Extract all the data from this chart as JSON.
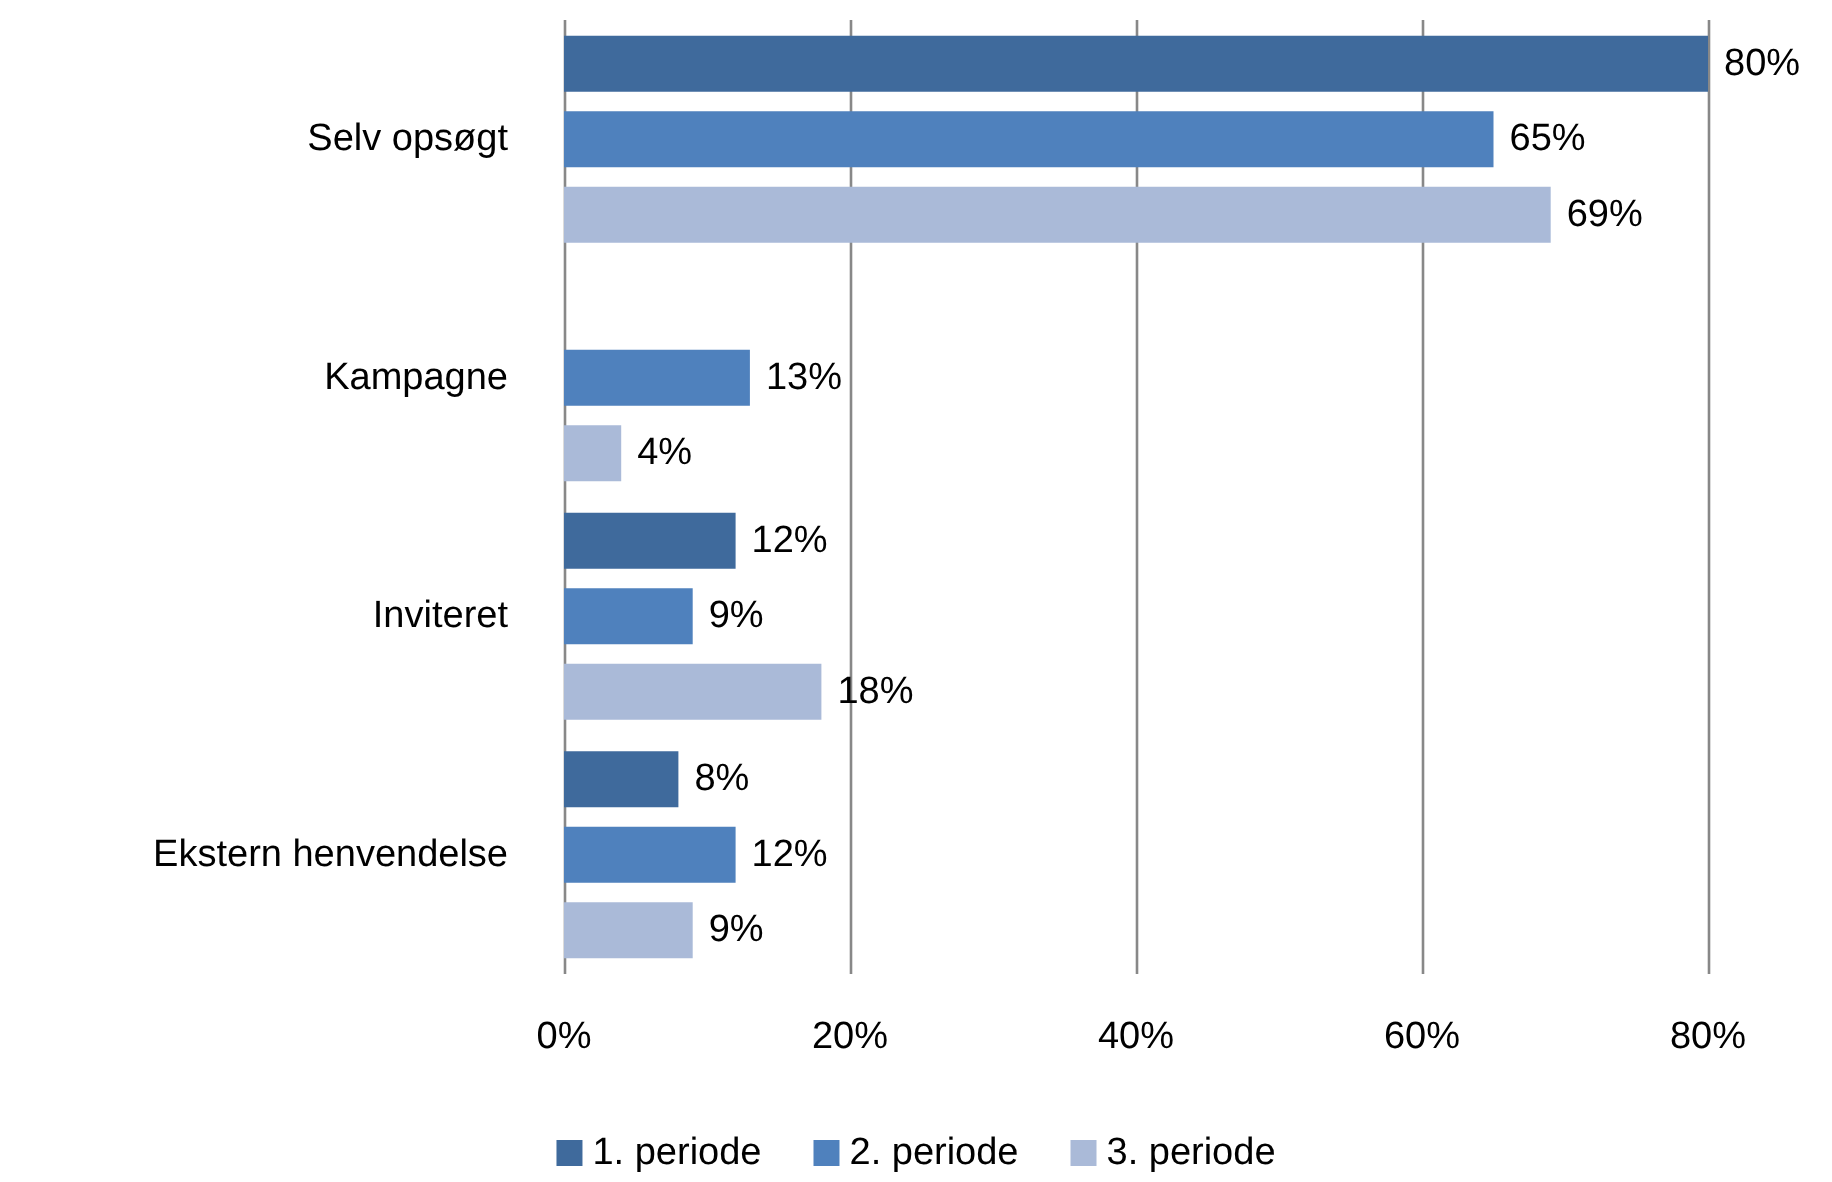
{
  "chart_data": {
    "type": "bar",
    "orientation": "horizontal",
    "categories": [
      "Selv opsøgt",
      "Kampagne",
      "Inviteret",
      "Ekstern henvendelse"
    ],
    "series": [
      {
        "name": "1. periode",
        "color": "#3f6a9c",
        "values": [
          80,
          null,
          12,
          8
        ],
        "value_labels": [
          "80%",
          null,
          "12%",
          "8%"
        ]
      },
      {
        "name": "2. periode",
        "color": "#4f81bd",
        "values": [
          65,
          13,
          9,
          12
        ],
        "value_labels": [
          "65%",
          "13%",
          "9%",
          "12%"
        ]
      },
      {
        "name": "3. periode",
        "color": "#aabad8",
        "values": [
          69,
          4,
          18,
          9
        ],
        "value_labels": [
          "69%",
          "4%",
          "18%",
          "9%"
        ]
      }
    ],
    "xlim": [
      0,
      80
    ],
    "xticks": [
      {
        "value": 0,
        "label": "0%"
      },
      {
        "value": 20,
        "label": "20%"
      },
      {
        "value": 40,
        "label": "40%"
      },
      {
        "value": 60,
        "label": "60%"
      },
      {
        "value": 80,
        "label": "80%"
      }
    ],
    "grid": "x",
    "legend": "bottom"
  }
}
